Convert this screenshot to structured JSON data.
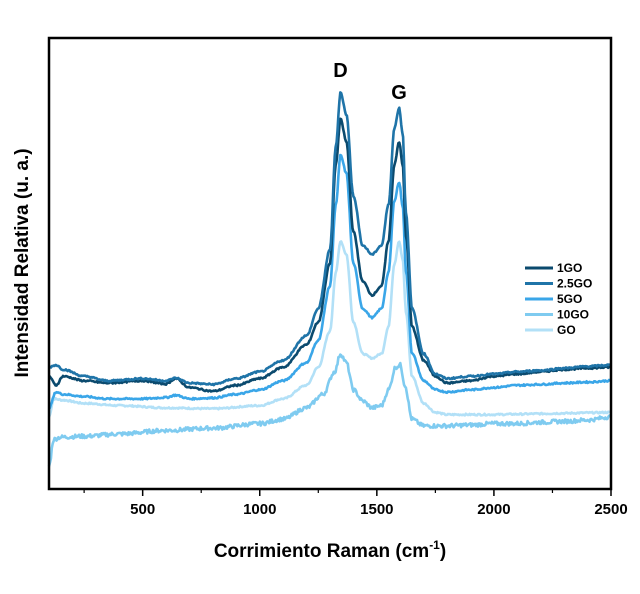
{
  "chart_data": {
    "type": "line",
    "xlabel": "Corrimiento Raman (cm",
    "xlabel_sup": "-1",
    "xlabel_close": ")",
    "ylabel": "Intensidad Relativa (u. a.)",
    "xlim": [
      100,
      2500
    ],
    "ylim": [
      0,
      100
    ],
    "x_ticks": [
      500,
      1000,
      1500,
      2000,
      2500
    ],
    "x_minor_ticks": [
      250,
      750,
      1250,
      1750,
      2250
    ],
    "y_tick_labels": "hidden",
    "grid": false,
    "legend_position": "right",
    "annotations": [
      {
        "text": "D",
        "x": 1345
      },
      {
        "text": "G",
        "x": 1595
      }
    ],
    "series": [
      {
        "name": "1GO",
        "color": "#0b4a6e",
        "x": [
          100,
          130,
          160,
          250,
          350,
          500,
          600,
          640,
          700,
          800,
          900,
          1000,
          1100,
          1200,
          1250,
          1300,
          1325,
          1345,
          1370,
          1400,
          1440,
          1480,
          1520,
          1550,
          1575,
          1595,
          1610,
          1625,
          1650,
          1700,
          1750,
          1800,
          1900,
          2000,
          2100,
          2200,
          2300,
          2400,
          2500
        ],
        "y": [
          25,
          23,
          25,
          24,
          23.5,
          24,
          23.3,
          24.5,
          22.5,
          21.7,
          23,
          24.5,
          27,
          32,
          37,
          50,
          72,
          82,
          77,
          57,
          46,
          43,
          45,
          55,
          72,
          77,
          72,
          56,
          36,
          28.5,
          25,
          23.5,
          24,
          25,
          25.5,
          26,
          26.5,
          26.8,
          27
        ]
      },
      {
        "name": "2.5GO",
        "color": "#1f74a8",
        "x": [
          100,
          130,
          160,
          250,
          350,
          500,
          600,
          640,
          700,
          800,
          900,
          1000,
          1100,
          1200,
          1250,
          1300,
          1325,
          1345,
          1370,
          1400,
          1440,
          1480,
          1520,
          1550,
          1575,
          1595,
          1610,
          1625,
          1650,
          1700,
          1750,
          1800,
          1900,
          2000,
          2100,
          2200,
          2300,
          2400,
          2500
        ],
        "y": [
          27,
          27.5,
          26.5,
          25,
          24,
          24.5,
          24,
          24.6,
          23.5,
          23.2,
          24.5,
          26,
          28.5,
          34,
          40,
          53,
          76,
          88,
          83,
          65,
          54,
          52,
          54,
          63,
          80,
          84.5,
          79,
          61,
          40,
          30,
          25.5,
          24.5,
          25,
          25.5,
          26,
          26.3,
          26.8,
          27.2,
          27.5
        ]
      },
      {
        "name": "5GO",
        "color": "#3aa6e8",
        "x": [
          100,
          130,
          160,
          250,
          350,
          500,
          600,
          640,
          700,
          800,
          900,
          1000,
          1100,
          1200,
          1250,
          1300,
          1325,
          1345,
          1370,
          1400,
          1440,
          1480,
          1520,
          1550,
          1575,
          1595,
          1610,
          1625,
          1650,
          1700,
          1750,
          1800,
          1900,
          2000,
          2100,
          2200,
          2300,
          2400,
          2500
        ],
        "y": [
          18,
          21.5,
          21,
          20.5,
          20,
          20,
          20.3,
          20.8,
          20,
          20.2,
          21,
          22,
          24,
          28,
          33,
          45,
          63,
          74,
          70,
          50,
          40,
          38,
          40,
          48,
          64,
          68,
          63,
          48,
          30,
          24,
          22,
          21.5,
          22,
          22.5,
          23,
          23.2,
          23.5,
          23.7,
          24
        ]
      },
      {
        "name": "10GO",
        "color": "#7fcbf0",
        "x": [
          100,
          120,
          150,
          250,
          400,
          600,
          800,
          1000,
          1100,
          1200,
          1270,
          1320,
          1345,
          1370,
          1400,
          1440,
          1480,
          1520,
          1550,
          1580,
          1600,
          1620,
          1650,
          1700,
          1800,
          1900,
          2000,
          2100,
          2200,
          2300,
          2400,
          2500
        ],
        "y": [
          5,
          11,
          11.5,
          11.7,
          12.2,
          13,
          13.5,
          14.5,
          15.5,
          18,
          21,
          26,
          30,
          28,
          22,
          19.5,
          18,
          18.5,
          22,
          27,
          27.5,
          23,
          15.5,
          14,
          14,
          14.2,
          14.5,
          14.5,
          14.8,
          15,
          15.3,
          16
        ]
      },
      {
        "name": "GO",
        "color": "#b2e0f7",
        "x": [
          100,
          120,
          160,
          250,
          400,
          600,
          800,
          1000,
          1100,
          1200,
          1250,
          1300,
          1325,
          1345,
          1370,
          1400,
          1440,
          1480,
          1520,
          1550,
          1575,
          1595,
          1610,
          1625,
          1650,
          1700,
          1750,
          1800,
          1900,
          2000,
          2100,
          2200,
          2300,
          2400,
          2500
        ],
        "y": [
          16,
          20,
          19.7,
          19,
          18.5,
          18,
          17.8,
          18.5,
          20,
          23,
          27,
          35,
          48,
          55,
          52,
          37,
          30,
          29,
          30,
          36,
          50,
          55,
          51,
          39,
          25,
          19,
          17,
          16.5,
          16.5,
          16.5,
          16.6,
          16.7,
          16.8,
          16.9,
          17
        ]
      }
    ]
  }
}
